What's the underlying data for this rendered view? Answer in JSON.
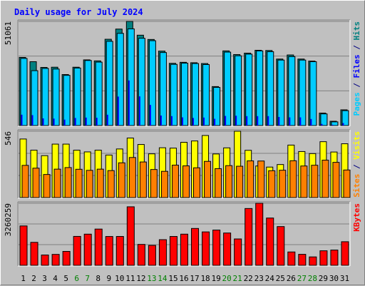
{
  "chart_data": {
    "type": "bar",
    "title": "Daily usage for July 2024",
    "categories": [
      "1",
      "2",
      "3",
      "4",
      "5",
      "6",
      "7",
      "8",
      "9",
      "10",
      "11",
      "12",
      "13",
      "14",
      "15",
      "16",
      "17",
      "18",
      "19",
      "20",
      "21",
      "22",
      "23",
      "24",
      "25",
      "26",
      "27",
      "28",
      "29",
      "30",
      "31"
    ],
    "weekend_days": [
      "6",
      "7",
      "13",
      "14",
      "20",
      "21",
      "27",
      "28"
    ],
    "panels": [
      {
        "id": "hits",
        "max_label": "51061",
        "ylim": [
          0,
          51061
        ],
        "axis_label_parts": [
          {
            "text": "Pages",
            "color": "#00ccff"
          },
          {
            "text": " / ",
            "color": "#000080"
          },
          {
            "text": "Files",
            "color": "#0000ff"
          },
          {
            "text": " / ",
            "color": "#000080"
          },
          {
            "text": "Hits",
            "color": "#008080"
          }
        ],
        "series": [
          {
            "name": "Hits",
            "color": "#008080",
            "values": [
              33400,
              31300,
              28500,
              28600,
              25000,
              28600,
              32200,
              31700,
              42300,
              47300,
              51061,
              44300,
              42200,
              36500,
              30500,
              31000,
              30800,
              30400,
              19100,
              36600,
              34800,
              35500,
              36900,
              36800,
              32600,
              34600,
              32600,
              31600,
              6100,
              2100,
              7700
            ]
          },
          {
            "name": "Files",
            "color": "#0000ff",
            "values": [
              5300,
              5100,
              3500,
              3400,
              2900,
              3700,
              3900,
              3800,
              5300,
              14200,
              22100,
              14300,
              10100,
              4900,
              4600,
              4000,
              3700,
              3900,
              3300,
              4700,
              4800,
              4600,
              4600,
              4600,
              4200,
              4000,
              4000,
              3200,
              800,
              400,
              1200
            ]
          },
          {
            "name": "Pages",
            "color": "#00ccff",
            "values": [
              32900,
              26900,
              28000,
              27700,
              24600,
              28200,
              31900,
              31100,
              41300,
              45200,
              47400,
              42800,
              41600,
              35800,
              30000,
              30600,
              30400,
              29900,
              18700,
              36000,
              34200,
              35000,
              36600,
              36200,
              32100,
              33800,
              32100,
              31300,
              5700,
              1800,
              7300
            ]
          }
        ]
      },
      {
        "id": "visits",
        "max_label": "546",
        "ylim": [
          0,
          546
        ],
        "axis_label_parts": [
          {
            "text": "Sites",
            "color": "#ff8000"
          },
          {
            "text": " / ",
            "color": "#000080"
          },
          {
            "text": "Visits",
            "color": "#ffff00"
          }
        ],
        "series": [
          {
            "name": "Visits",
            "color": "#ffff00",
            "values": [
              482,
              390,
              345,
              440,
              440,
              390,
              376,
              390,
              350,
              400,
              490,
              437,
              360,
              410,
              407,
              455,
              466,
              511,
              359,
              409,
              546,
              389,
              260,
              251,
              272,
              432,
              379,
              362,
              460,
              375,
              443
            ]
          },
          {
            "name": "Sites",
            "color": "#ff8000",
            "values": [
              265,
              242,
              190,
              234,
              247,
              233,
              224,
              234,
              222,
              286,
              330,
              293,
              231,
              216,
              267,
              261,
              245,
              298,
              238,
              263,
              258,
              302,
              301,
              221,
              225,
              303,
              260,
              266,
              308,
              290,
              227
            ]
          }
        ]
      },
      {
        "id": "kbytes",
        "max_label": "3260259",
        "ylim": [
          0,
          3260259
        ],
        "axis_label_parts": [
          {
            "text": "KBytes",
            "color": "#ff0000"
          }
        ],
        "series": [
          {
            "name": "KBytes",
            "color": "#ff0000",
            "values": [
              2070000,
              1207000,
              542000,
              574000,
              731000,
              1520000,
              1638000,
              1905000,
              1515000,
              1517000,
              3075000,
              1099000,
              1046000,
              1348000,
              1516000,
              1638000,
              1937000,
              1756000,
              1853000,
              1698000,
              1386000,
              2985000,
              3260259,
              2485000,
              2036000,
              702000,
              578000,
              442000,
              764000,
              802000,
              1240000
            ]
          }
        ]
      }
    ]
  }
}
